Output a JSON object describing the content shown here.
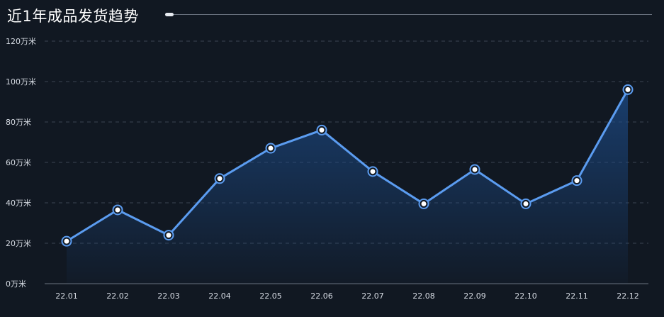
{
  "header": {
    "title": "近1年成品发货趋势"
  },
  "colors": {
    "background": "#111822",
    "line": "#5b9cf0",
    "grid": "#3c4452",
    "point_fill": "#ffffff",
    "area_top": "#1c4a86"
  },
  "chart_data": {
    "type": "line",
    "title": "近1年成品发货趋势",
    "categories": [
      "22.01",
      "22.02",
      "22.03",
      "22.04",
      "22.05",
      "22.06",
      "22.07",
      "22.08",
      "22.09",
      "22.10",
      "22.11",
      "22.12"
    ],
    "series": [
      {
        "values": [
          21,
          36.5,
          24,
          52,
          67,
          76,
          55.5,
          39.5,
          56.5,
          39.5,
          51,
          96
        ]
      }
    ],
    "ylim": [
      0,
      120
    ],
    "yticks": [
      0,
      20,
      40,
      60,
      80,
      100,
      120
    ],
    "ytick_labels": [
      "0万米",
      "20万米",
      "40万米",
      "60万米",
      "80万米",
      "100万米",
      "120万米"
    ],
    "y_unit": "万米",
    "grid": true,
    "area_fill": true
  }
}
